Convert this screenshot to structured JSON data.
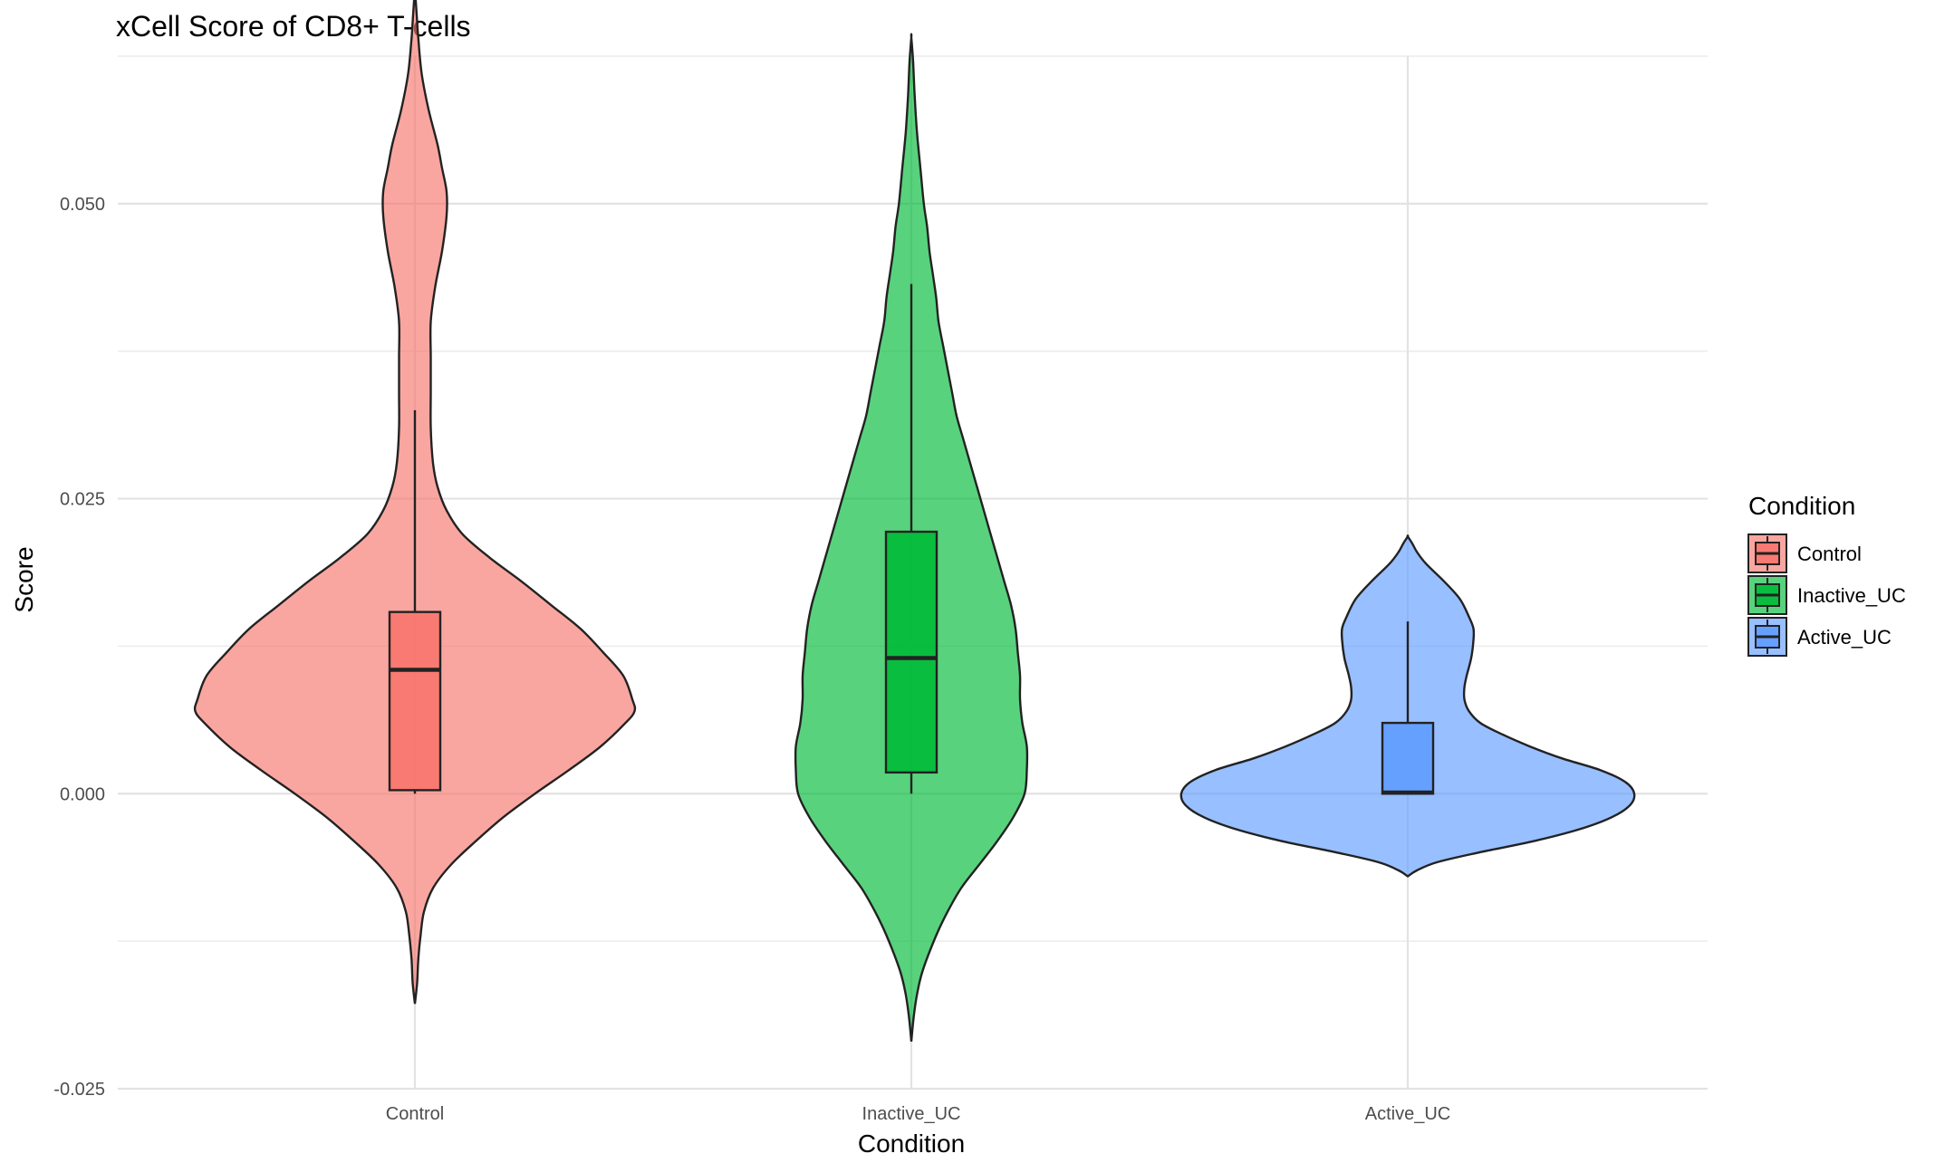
{
  "chart_data": {
    "type": "violin",
    "title": "xCell Score of CD8+ T-cells",
    "xlabel": "Condition",
    "ylabel": "Score",
    "categories": [
      "Control",
      "Inactive_UC",
      "Active_UC"
    ],
    "ylim": [
      -0.025,
      0.0625
    ],
    "yticks": [
      -0.025,
      0.0,
      0.025,
      0.05
    ],
    "ytick_labels": [
      "-0.025",
      "0.000",
      "0.025",
      "0.050"
    ],
    "minor_yticks": [
      -0.0125,
      0.0125,
      0.0375,
      0.0625
    ],
    "grid": true,
    "legend": {
      "title": "Condition",
      "position": "right",
      "entries": [
        "Control",
        "Inactive_UC",
        "Active_UC"
      ]
    },
    "colors": {
      "Control": "#F8766D",
      "Inactive_UC": "#00BA38",
      "Active_UC": "#619CFF"
    },
    "series": [
      {
        "name": "Control",
        "box": {
          "lower_whisker": 0.0,
          "q1": 0.0003,
          "median": 0.0105,
          "q3": 0.0154,
          "upper_whisker": 0.0325
        },
        "density_range": [
          -0.0178,
          0.0682
        ],
        "violin_profile": [
          [
            -0.0178,
            0.0
          ],
          [
            -0.016,
            0.01
          ],
          [
            -0.014,
            0.015
          ],
          [
            -0.012,
            0.025
          ],
          [
            -0.01,
            0.04
          ],
          [
            -0.008,
            0.08
          ],
          [
            -0.006,
            0.16
          ],
          [
            -0.004,
            0.27
          ],
          [
            -0.002,
            0.39
          ],
          [
            0.0,
            0.53
          ],
          [
            0.002,
            0.68
          ],
          [
            0.004,
            0.82
          ],
          [
            0.006,
            0.93
          ],
          [
            0.007,
            0.97
          ],
          [
            0.008,
            0.96
          ],
          [
            0.01,
            0.92
          ],
          [
            0.012,
            0.83
          ],
          [
            0.014,
            0.73
          ],
          [
            0.016,
            0.6
          ],
          [
            0.018,
            0.47
          ],
          [
            0.02,
            0.33
          ],
          [
            0.022,
            0.21
          ],
          [
            0.024,
            0.14
          ],
          [
            0.026,
            0.1
          ],
          [
            0.028,
            0.08
          ],
          [
            0.031,
            0.07
          ],
          [
            0.034,
            0.07
          ],
          [
            0.037,
            0.07
          ],
          [
            0.04,
            0.07
          ],
          [
            0.043,
            0.09
          ],
          [
            0.046,
            0.12
          ],
          [
            0.049,
            0.14
          ],
          [
            0.051,
            0.14
          ],
          [
            0.053,
            0.12
          ],
          [
            0.055,
            0.1
          ],
          [
            0.058,
            0.06
          ],
          [
            0.061,
            0.03
          ],
          [
            0.064,
            0.015
          ],
          [
            0.066,
            0.008
          ],
          [
            0.0682,
            0.0
          ]
        ]
      },
      {
        "name": "Inactive_UC",
        "box": {
          "lower_whisker": 0.0,
          "q1": 0.0018,
          "median": 0.0115,
          "q3": 0.0222,
          "upper_whisker": 0.0432
        },
        "density_range": [
          -0.021,
          0.0641
        ],
        "violin_profile": [
          [
            -0.021,
            0.0
          ],
          [
            -0.019,
            0.01
          ],
          [
            -0.017,
            0.025
          ],
          [
            -0.015,
            0.05
          ],
          [
            -0.012,
            0.11
          ],
          [
            -0.01,
            0.16
          ],
          [
            -0.008,
            0.22
          ],
          [
            -0.006,
            0.3
          ],
          [
            -0.004,
            0.38
          ],
          [
            -0.002,
            0.45
          ],
          [
            0.0,
            0.5
          ],
          [
            0.002,
            0.51
          ],
          [
            0.004,
            0.51
          ],
          [
            0.006,
            0.49
          ],
          [
            0.008,
            0.48
          ],
          [
            0.01,
            0.48
          ],
          [
            0.012,
            0.47
          ],
          [
            0.014,
            0.46
          ],
          [
            0.016,
            0.44
          ],
          [
            0.018,
            0.41
          ],
          [
            0.02,
            0.38
          ],
          [
            0.022,
            0.35
          ],
          [
            0.024,
            0.32
          ],
          [
            0.026,
            0.29
          ],
          [
            0.028,
            0.26
          ],
          [
            0.03,
            0.23
          ],
          [
            0.032,
            0.2
          ],
          [
            0.034,
            0.18
          ],
          [
            0.036,
            0.16
          ],
          [
            0.038,
            0.14
          ],
          [
            0.04,
            0.12
          ],
          [
            0.042,
            0.11
          ],
          [
            0.044,
            0.095
          ],
          [
            0.046,
            0.08
          ],
          [
            0.048,
            0.07
          ],
          [
            0.05,
            0.055
          ],
          [
            0.053,
            0.04
          ],
          [
            0.056,
            0.025
          ],
          [
            0.059,
            0.015
          ],
          [
            0.062,
            0.008
          ],
          [
            0.0641,
            0.0
          ]
        ]
      },
      {
        "name": "Active_UC",
        "box": {
          "lower_whisker": 0.0,
          "q1": 0.0,
          "median": 0.0001,
          "q3": 0.006,
          "upper_whisker": 0.0146
        },
        "density_range": [
          -0.007,
          0.0218
        ],
        "violin_profile": [
          [
            -0.007,
            0.0
          ],
          [
            -0.0065,
            0.04
          ],
          [
            -0.0058,
            0.13
          ],
          [
            -0.005,
            0.31
          ],
          [
            -0.004,
            0.56
          ],
          [
            -0.003,
            0.76
          ],
          [
            -0.002,
            0.9
          ],
          [
            -0.001,
            0.98
          ],
          [
            0.0,
            1.0
          ],
          [
            0.001,
            0.96
          ],
          [
            0.002,
            0.85
          ],
          [
            0.003,
            0.68
          ],
          [
            0.004,
            0.54
          ],
          [
            0.005,
            0.42
          ],
          [
            0.006,
            0.32
          ],
          [
            0.007,
            0.27
          ],
          [
            0.008,
            0.25
          ],
          [
            0.009,
            0.25
          ],
          [
            0.01,
            0.26
          ],
          [
            0.0115,
            0.28
          ],
          [
            0.013,
            0.29
          ],
          [
            0.014,
            0.29
          ],
          [
            0.015,
            0.27
          ],
          [
            0.0165,
            0.23
          ],
          [
            0.018,
            0.16
          ],
          [
            0.0195,
            0.08
          ],
          [
            0.0205,
            0.04
          ],
          [
            0.0212,
            0.02
          ],
          [
            0.0218,
            0.0
          ]
        ]
      }
    ]
  }
}
